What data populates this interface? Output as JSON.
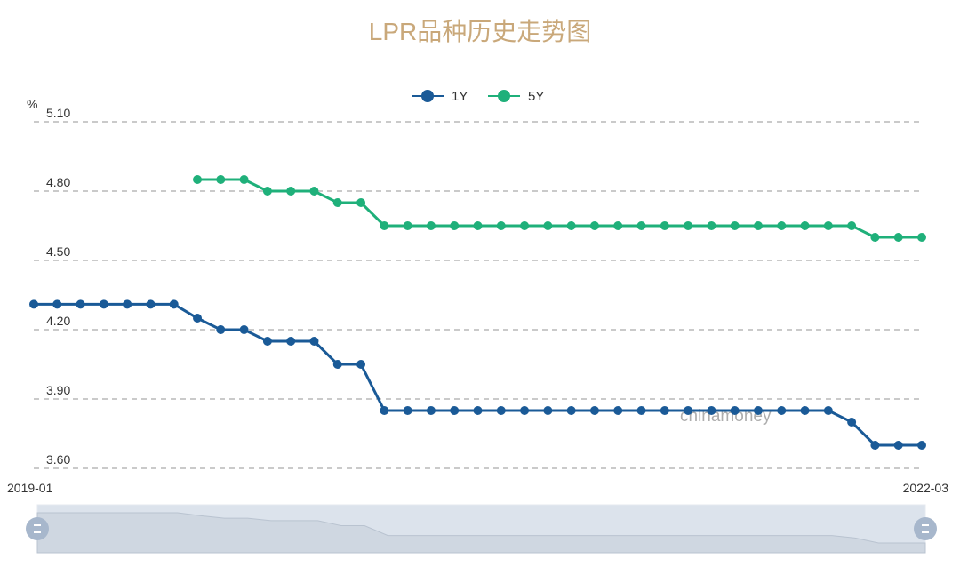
{
  "chart_data": {
    "type": "line",
    "title": "LPR品种历史走势图",
    "ylabel": "%",
    "xlabel": "",
    "ylim": [
      3.6,
      5.1
    ],
    "yticks": [
      "3.60",
      "3.90",
      "4.20",
      "4.50",
      "4.80",
      "5.10"
    ],
    "x_start_label": "2019-01",
    "x_end_label": "2022-03",
    "x": [
      "2019-01",
      "2019-02",
      "2019-03",
      "2019-04",
      "2019-05",
      "2019-06",
      "2019-07",
      "2019-08",
      "2019-09",
      "2019-10",
      "2019-11",
      "2019-12",
      "2020-01",
      "2020-02",
      "2020-03",
      "2020-04",
      "2020-05",
      "2020-06",
      "2020-07",
      "2020-08",
      "2020-09",
      "2020-10",
      "2020-11",
      "2020-12",
      "2021-01",
      "2021-02",
      "2021-03",
      "2021-04",
      "2021-05",
      "2021-06",
      "2021-07",
      "2021-08",
      "2021-09",
      "2021-10",
      "2021-11",
      "2021-12",
      "2022-01",
      "2022-02",
      "2022-03"
    ],
    "series": [
      {
        "name": "1Y",
        "color": "#1a5a97",
        "values": [
          4.31,
          4.31,
          4.31,
          4.31,
          4.31,
          4.31,
          4.31,
          4.25,
          4.2,
          4.2,
          4.15,
          4.15,
          4.15,
          4.05,
          4.05,
          3.85,
          3.85,
          3.85,
          3.85,
          3.85,
          3.85,
          3.85,
          3.85,
          3.85,
          3.85,
          3.85,
          3.85,
          3.85,
          3.85,
          3.85,
          3.85,
          3.85,
          3.85,
          3.85,
          3.85,
          3.8,
          3.7,
          3.7,
          3.7
        ]
      },
      {
        "name": "5Y",
        "color": "#1fb07a",
        "values": [
          null,
          null,
          null,
          null,
          null,
          null,
          null,
          4.85,
          4.85,
          4.85,
          4.8,
          4.8,
          4.8,
          4.75,
          4.75,
          4.65,
          4.65,
          4.65,
          4.65,
          4.65,
          4.65,
          4.65,
          4.65,
          4.65,
          4.65,
          4.65,
          4.65,
          4.65,
          4.65,
          4.65,
          4.65,
          4.65,
          4.65,
          4.65,
          4.65,
          4.65,
          4.6,
          4.6,
          4.6
        ]
      }
    ],
    "grid": true,
    "legend": "top-center",
    "watermark": "chinamoney",
    "data_zoom": {
      "start": "2019-01",
      "end": "2022-03"
    }
  }
}
